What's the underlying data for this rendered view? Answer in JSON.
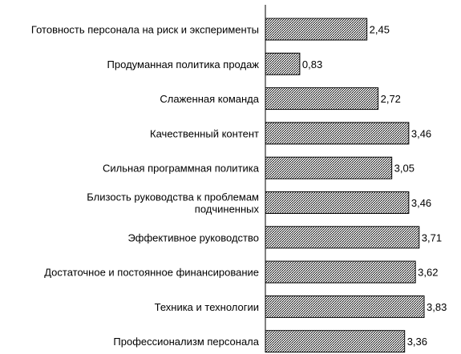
{
  "chart_data": {
    "type": "bar",
    "orientation": "horizontal",
    "categories": [
      [
        "Готовность персонала на риск и эксперименты"
      ],
      [
        "Продуманная политика продаж"
      ],
      [
        "Слаженная команда"
      ],
      [
        "Качественный контент"
      ],
      [
        "Сильная программная политика"
      ],
      [
        "Близость руководства к проблемам",
        "подчиненных"
      ],
      [
        "Эффективное руководство"
      ],
      [
        "Достаточное и постоянное финансирование"
      ],
      [
        "Техника и технологии"
      ],
      [
        "Профессионализм персонала"
      ]
    ],
    "values": [
      2.45,
      0.83,
      2.72,
      3.46,
      3.05,
      3.46,
      3.71,
      3.62,
      3.83,
      3.36
    ],
    "value_labels": [
      "2,45",
      "0,83",
      "2,72",
      "3,46",
      "3,05",
      "3,46",
      "3,71",
      "3,62",
      "3,83",
      "3,36"
    ],
    "xlim": [
      0,
      3.83
    ],
    "grid": false,
    "legend": "none",
    "bar_fill": "#000000",
    "bar_background": "#ffffff",
    "axis_color": "#000000"
  }
}
